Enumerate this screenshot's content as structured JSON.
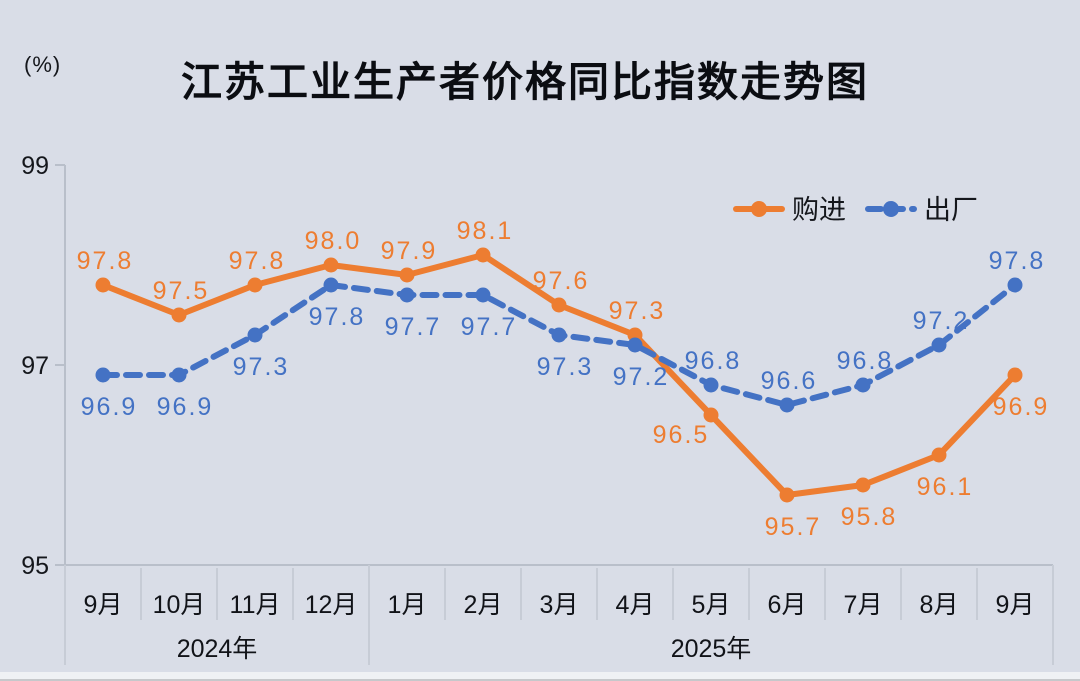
{
  "page": {
    "background_color": "#d9dde7"
  },
  "header": {
    "title": "江苏工业生产者价格同比指数走势图",
    "unit_label": "(%)"
  },
  "legend": {
    "position": "top-right",
    "items": [
      {
        "label": "购进",
        "color": "#ED7D31",
        "style": "solid"
      },
      {
        "label": "出厂",
        "color": "#4472C4",
        "style": "dashed"
      }
    ]
  },
  "chart_data": {
    "type": "line",
    "title": "江苏工业生产者价格同比指数走势图",
    "ylabel": "(%)",
    "xlabel": "",
    "ylim": [
      95,
      99
    ],
    "yticks": [
      95,
      97,
      99
    ],
    "grid": false,
    "legend_position": "top-right",
    "categories": [
      "9月",
      "10月",
      "11月",
      "12月",
      "1月",
      "2月",
      "3月",
      "4月",
      "5月",
      "6月",
      "7月",
      "8月",
      "9月"
    ],
    "year_groups": [
      {
        "label": "2024年",
        "start_index": 0,
        "end_index": 3
      },
      {
        "label": "2025年",
        "start_index": 4,
        "end_index": 12
      }
    ],
    "series": [
      {
        "name": "购进",
        "color": "#ED7D31",
        "line_style": "solid",
        "values": [
          97.8,
          97.5,
          97.8,
          98.0,
          97.9,
          98.1,
          97.6,
          97.3,
          96.5,
          95.7,
          95.8,
          96.1,
          96.9
        ],
        "label_positions": [
          "above",
          "above",
          "above",
          "above",
          "above",
          "above",
          "above",
          "above",
          "below-left",
          "below",
          "below",
          "below",
          "below"
        ]
      },
      {
        "name": "出厂",
        "color": "#4472C4",
        "line_style": "dashed",
        "values": [
          96.9,
          96.9,
          97.3,
          97.8,
          97.7,
          97.7,
          97.3,
          97.2,
          96.8,
          96.6,
          96.8,
          97.2,
          97.8
        ],
        "label_positions": [
          "below",
          "below",
          "below",
          "below",
          "below",
          "below",
          "below",
          "below",
          "above",
          "above",
          "above",
          "above",
          "above"
        ]
      }
    ]
  },
  "colors": {
    "axis_line": "#b9bfca",
    "separator_line": "#c7ccd6",
    "tick_text": "#15171c",
    "month_text": "#111318",
    "year_text": "#111318",
    "legend_text": "#15171c"
  }
}
